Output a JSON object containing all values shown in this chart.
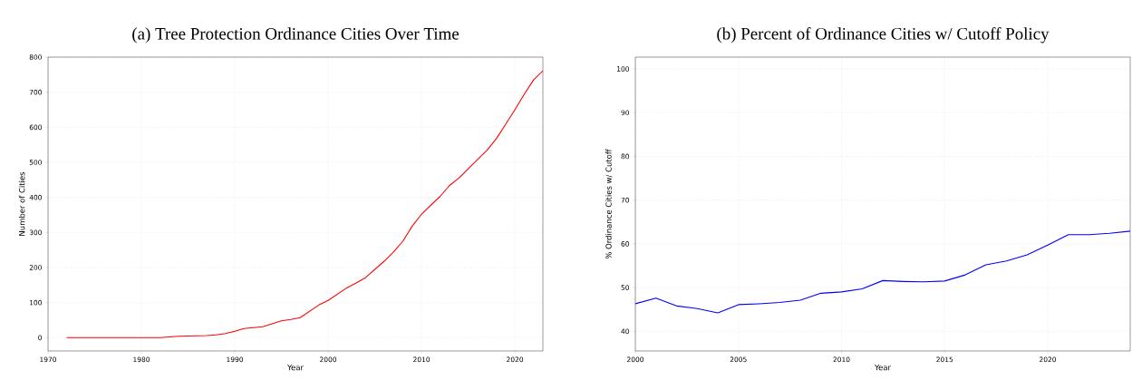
{
  "chart_data": [
    {
      "type": "line",
      "title": "(a) Tree Protection Ordinance Cities Over Time",
      "xlabel": "Year",
      "ylabel": "Number of Cities",
      "x": [
        1972,
        1982,
        1984,
        1987,
        1988,
        1989,
        1990,
        1991,
        1993,
        1995,
        1996,
        1997,
        1999,
        2000,
        2002,
        2003,
        2004,
        2006,
        2007,
        2008,
        2009,
        2010,
        2012,
        2013,
        2014,
        2016,
        2017,
        2018,
        2019,
        2020,
        2021,
        2022,
        2023
      ],
      "series": [
        {
          "color": "#ff0000",
          "values": [
            0,
            0,
            4,
            6,
            8,
            12,
            18,
            26,
            31,
            48,
            52,
            57,
            93,
            106,
            142,
            156,
            171,
            218,
            244,
            275,
            318,
            352,
            403,
            434,
            455,
            508,
            534,
            567,
            608,
            650,
            694,
            735,
            761
          ]
        }
      ],
      "xlim": [
        1970,
        2023
      ],
      "ylim": [
        -38,
        800
      ],
      "xticks": [
        1970,
        1980,
        1990,
        2000,
        2010,
        2020
      ],
      "yticks": [
        0,
        100,
        200,
        300,
        400,
        500,
        600,
        700,
        800
      ],
      "grid": true
    },
    {
      "type": "line",
      "title": "(b) Percent of Ordinance Cities w/ Cutoff Policy",
      "xlabel": "Year",
      "ylabel": "% Ordinance Cities w/ Cutoff",
      "x": [
        2000,
        2001,
        2002,
        2003,
        2004,
        2005,
        2006,
        2007,
        2008,
        2009,
        2010,
        2011,
        2012,
        2013,
        2014,
        2015,
        2016,
        2017,
        2018,
        2019,
        2020,
        2021,
        2022,
        2023,
        2024
      ],
      "series": [
        {
          "color": "#0000ff",
          "values": [
            46.3,
            47.6,
            45.8,
            45.2,
            44.2,
            46.1,
            46.3,
            46.6,
            47.1,
            48.7,
            49.0,
            49.7,
            51.6,
            51.4,
            51.3,
            51.5,
            52.9,
            55.2,
            56.1,
            57.5,
            59.7,
            62.1,
            62.1,
            62.4,
            62.9
          ]
        }
      ],
      "xlim": [
        2000,
        2024
      ],
      "ylim": [
        35.5,
        102.7
      ],
      "xticks": [
        2000,
        2005,
        2010,
        2015,
        2020
      ],
      "yticks": [
        40,
        50,
        60,
        70,
        80,
        90,
        100
      ],
      "grid": true
    }
  ]
}
